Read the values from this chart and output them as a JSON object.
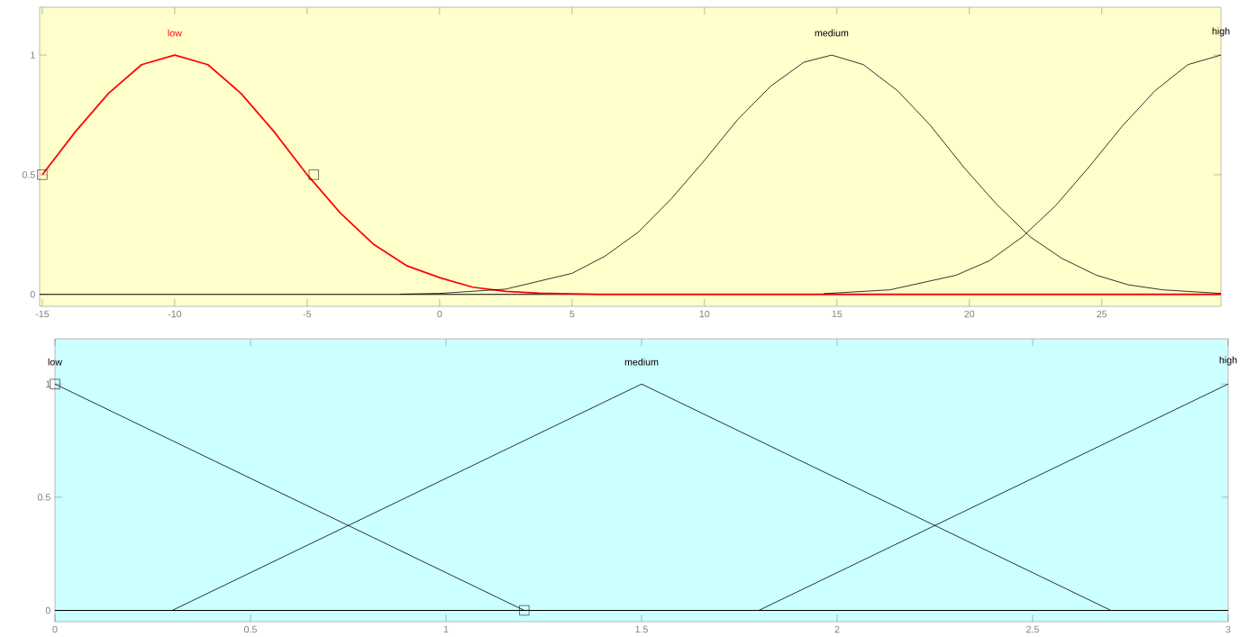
{
  "chart_data": [
    {
      "type": "line",
      "xlim": [
        -15.1,
        29.5
      ],
      "ylim": [
        -0.05,
        1.2
      ],
      "xticks": [
        -15,
        -10,
        -5,
        0,
        5,
        10,
        15,
        20,
        25
      ],
      "yticks": [
        0,
        0.5,
        1
      ],
      "grid": false,
      "ref_lines": [
        {
          "axis": "y",
          "value": 0,
          "color": "#000000"
        }
      ],
      "series": [
        {
          "name": "low",
          "color": "#ff0000",
          "x": [
            -15,
            -13.75,
            -12.5,
            -11.25,
            -10,
            -8.75,
            -7.5,
            -6.25,
            -5,
            -3.75,
            -2.5,
            -1.25,
            0,
            1.25,
            2.5,
            3.75,
            5,
            6,
            29.5
          ],
          "values": [
            0.5,
            0.68,
            0.84,
            0.96,
            1,
            0.96,
            0.84,
            0.68,
            0.5,
            0.34,
            0.21,
            0.12,
            0.07,
            0.03,
            0.013,
            0.005,
            0.002,
            0,
            0
          ]
        },
        {
          "name": "medium",
          "color": "#000000",
          "x": [
            -1.5,
            0,
            2.5,
            5,
            6.25,
            7.5,
            8.75,
            10,
            11.25,
            12.5,
            13.75,
            14.8,
            16,
            17.3,
            18.5,
            19.8,
            21,
            22.3,
            23.5,
            24.8,
            26,
            27.3,
            29.5
          ],
          "values": [
            0.001,
            0.004,
            0.022,
            0.088,
            0.16,
            0.26,
            0.4,
            0.56,
            0.73,
            0.87,
            0.97,
            1,
            0.96,
            0.85,
            0.71,
            0.53,
            0.38,
            0.24,
            0.15,
            0.08,
            0.04,
            0.019,
            0.004
          ]
        },
        {
          "name": "high",
          "color": "#000000",
          "x": [
            14.5,
            17,
            19.5,
            20.75,
            22,
            23.25,
            24.5,
            25.75,
            27,
            28.25,
            29.5
          ],
          "values": [
            0.003,
            0.019,
            0.08,
            0.14,
            0.24,
            0.37,
            0.53,
            0.7,
            0.85,
            0.96,
            1
          ]
        },
        {
          "type": "scatter",
          "marker": "square",
          "color": "#000000",
          "x": [
            -15,
            -4.75
          ],
          "values": [
            0.5,
            0.5
          ]
        }
      ]
    },
    {
      "type": "line",
      "xlim": [
        0,
        3
      ],
      "ylim": [
        -0.05,
        1.2
      ],
      "xticks": [
        0,
        0.5,
        1,
        1.5,
        2,
        2.5,
        3
      ],
      "yticks": [
        0,
        0.5,
        1
      ],
      "grid": false,
      "ref_lines": [
        {
          "axis": "y",
          "value": 0,
          "color": "#000000"
        }
      ],
      "series": [
        {
          "name": "low",
          "color": "#000000",
          "x": [
            0,
            1.2
          ],
          "values": [
            1,
            0
          ]
        },
        {
          "name": "medium",
          "color": "#000000",
          "x": [
            0.3,
            1.5,
            2.7
          ],
          "values": [
            0,
            1,
            0
          ]
        },
        {
          "name": "high",
          "color": "#000000",
          "x": [
            1.8,
            3
          ],
          "values": [
            0,
            1
          ]
        },
        {
          "type": "scatter",
          "marker": "square",
          "color": "#000000",
          "x": [
            0,
            1.2
          ],
          "values": [
            1,
            0
          ]
        }
      ]
    }
  ]
}
